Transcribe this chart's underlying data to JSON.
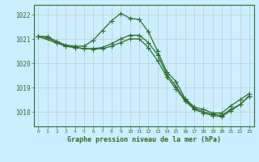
{
  "background_color": "#cceeff",
  "grid_color": "#bbcccc",
  "line_color": "#2d6e2d",
  "marker_color": "#2d6e2d",
  "title": "Graphe pression niveau de la mer (hPa)",
  "xlim": [
    -0.5,
    23.5
  ],
  "ylim": [
    1017.4,
    1022.4
  ],
  "yticks": [
    1018,
    1019,
    1020,
    1021,
    1022
  ],
  "xticks": [
    0,
    1,
    2,
    3,
    4,
    5,
    6,
    7,
    8,
    9,
    10,
    11,
    12,
    13,
    14,
    15,
    16,
    17,
    18,
    19,
    20,
    21,
    22,
    23
  ],
  "series1_x": [
    0,
    1,
    2,
    3,
    4,
    5,
    6,
    7,
    8,
    9,
    10,
    11,
    12,
    13,
    14,
    15,
    16,
    17,
    18,
    19,
    20,
    21,
    22,
    23
  ],
  "series1_y": [
    1021.1,
    1021.1,
    1020.9,
    1020.75,
    1020.7,
    1020.7,
    1020.95,
    1021.35,
    1021.75,
    1022.05,
    1021.85,
    1021.8,
    1021.3,
    1020.5,
    1019.65,
    1019.25,
    1018.55,
    1018.2,
    1018.1,
    1017.95,
    1017.95,
    1018.25,
    1018.5,
    1018.75
  ],
  "series2_x": [
    0,
    1,
    2,
    3,
    4,
    5,
    6,
    7,
    8,
    9,
    10,
    11,
    12,
    13,
    14,
    15,
    16,
    17,
    18,
    19,
    20,
    21,
    22,
    23
  ],
  "series2_y": [
    1021.1,
    1021.05,
    1020.85,
    1020.7,
    1020.65,
    1020.6,
    1020.6,
    1020.65,
    1020.8,
    1021.0,
    1021.15,
    1021.15,
    1020.85,
    1020.35,
    1019.55,
    1019.05,
    1018.5,
    1018.15,
    1018.0,
    1017.9,
    1017.85,
    1018.1,
    1018.3,
    1018.65
  ],
  "series3_x": [
    0,
    3,
    4,
    5,
    6,
    7,
    8,
    9,
    10,
    11,
    12,
    13,
    14,
    15,
    16,
    17,
    18,
    19,
    20,
    21,
    22,
    23
  ],
  "series3_y": [
    1021.1,
    1020.7,
    1020.65,
    1020.6,
    1020.58,
    1020.6,
    1020.7,
    1020.85,
    1021.0,
    1021.0,
    1020.65,
    1020.1,
    1019.45,
    1018.95,
    1018.45,
    1018.1,
    1017.95,
    1017.85,
    1017.8,
    1018.05,
    1018.3,
    1018.65
  ]
}
